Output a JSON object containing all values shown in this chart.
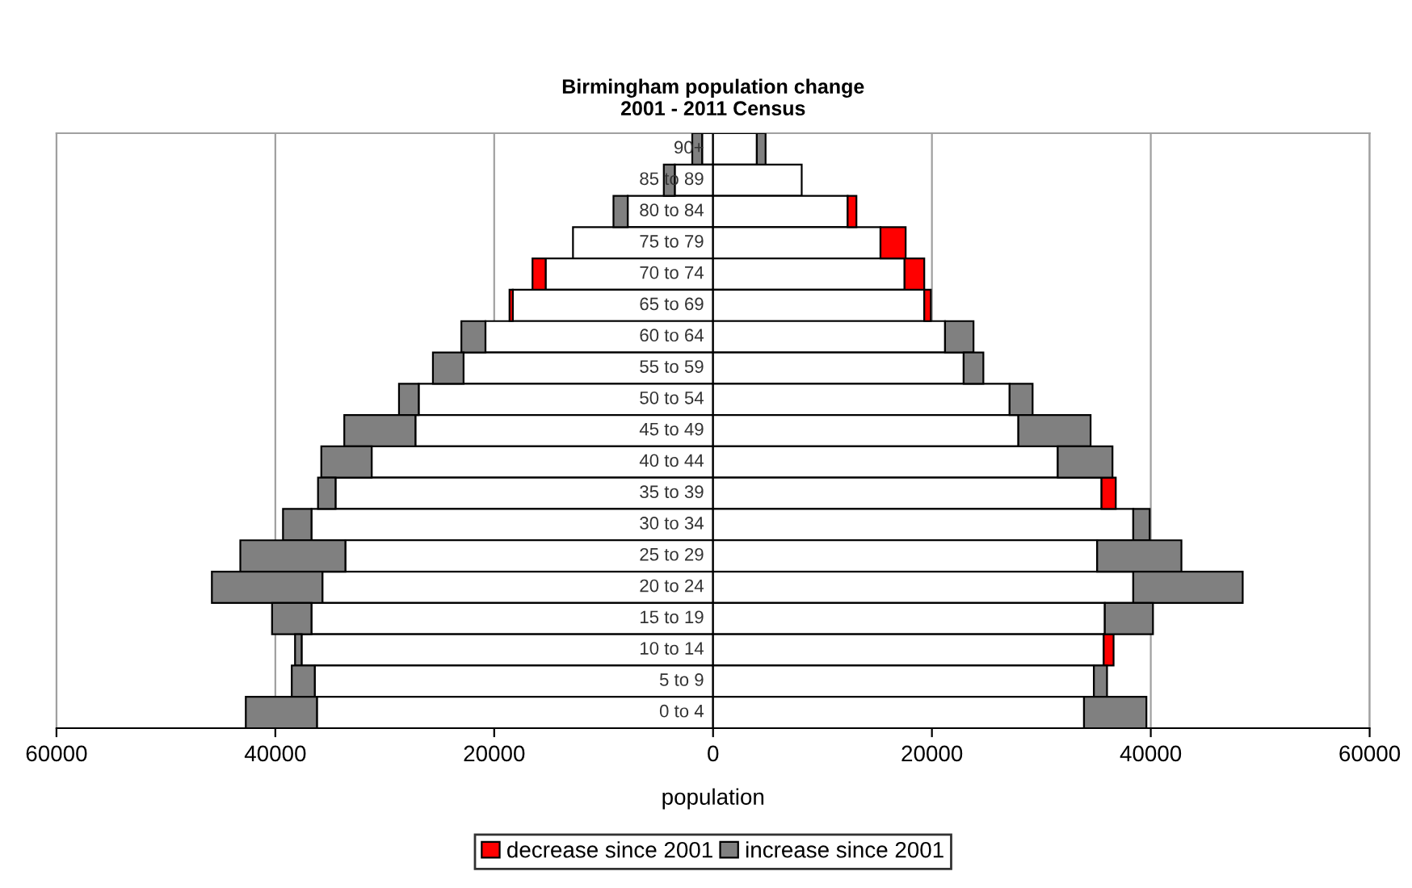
{
  "chart_data": {
    "type": "bar",
    "orientation": "horizontal",
    "stacked": true,
    "title": "Birmingham population change\n2001 - 2011 Census",
    "xlabel": "population",
    "categories": [
      "90+",
      "85 to 89",
      "80 to 84",
      "75 to 79",
      "70 to 74",
      "65 to 69",
      "60 to 64",
      "55 to 59",
      "50 to 54",
      "45 to 49",
      "40 to 44",
      "35 to 39",
      "30 to 34",
      "25 to 29",
      "20 to 24",
      "15 to 19",
      "10 to 14",
      "5 to 9",
      "0 to 4"
    ],
    "series": [
      {
        "color": "#ffffff",
        "values": [
          -1000,
          -3500,
          -7800,
          -12800,
          -15300,
          -18300,
          -20800,
          -22800,
          -26900,
          -27200,
          -31200,
          -34500,
          -36700,
          -33600,
          -35700,
          -36700,
          -37600,
          -36400,
          -36200
        ]
      },
      {
        "color": "#ff0000",
        "values": [
          null,
          null,
          null,
          null,
          -1200,
          -300,
          null,
          null,
          null,
          null,
          null,
          null,
          null,
          null,
          null,
          null,
          null,
          null,
          null
        ]
      },
      {
        "color": "#808080",
        "values": [
          -900,
          -1000,
          -1300,
          null,
          null,
          null,
          -2200,
          -2800,
          -1800,
          -6500,
          -4600,
          -1600,
          -2600,
          -9600,
          -10100,
          -3600,
          -600,
          -2100,
          -6500
        ]
      },
      {
        "color": "#ffffff",
        "values": [
          4000,
          8100,
          12300,
          15300,
          17500,
          19300,
          21200,
          22900,
          27100,
          27900,
          31500,
          35500,
          38400,
          35100,
          38400,
          35800,
          35700,
          34800,
          33900
        ]
      },
      {
        "name": "decrease since 2001",
        "color": "#ff0000",
        "values": [
          null,
          null,
          800,
          2300,
          1800,
          600,
          null,
          null,
          null,
          null,
          null,
          1300,
          null,
          null,
          null,
          null,
          900,
          null,
          null
        ]
      },
      {
        "name": "increase since 2001",
        "color": "#808080",
        "values": [
          800,
          null,
          null,
          null,
          null,
          null,
          2600,
          1800,
          2100,
          6600,
          5000,
          null,
          1500,
          7700,
          10000,
          4400,
          null,
          1200,
          5700
        ]
      }
    ],
    "xlim": [
      -60000,
      60000
    ],
    "xticks": [
      {
        "value": -60000,
        "label": "60000"
      },
      {
        "value": -40000,
        "label": "40000"
      },
      {
        "value": -20000,
        "label": "20000"
      },
      0,
      20000,
      40000,
      60000
    ],
    "grid": "x",
    "legend": "bottom",
    "tick_labels": "x"
  }
}
